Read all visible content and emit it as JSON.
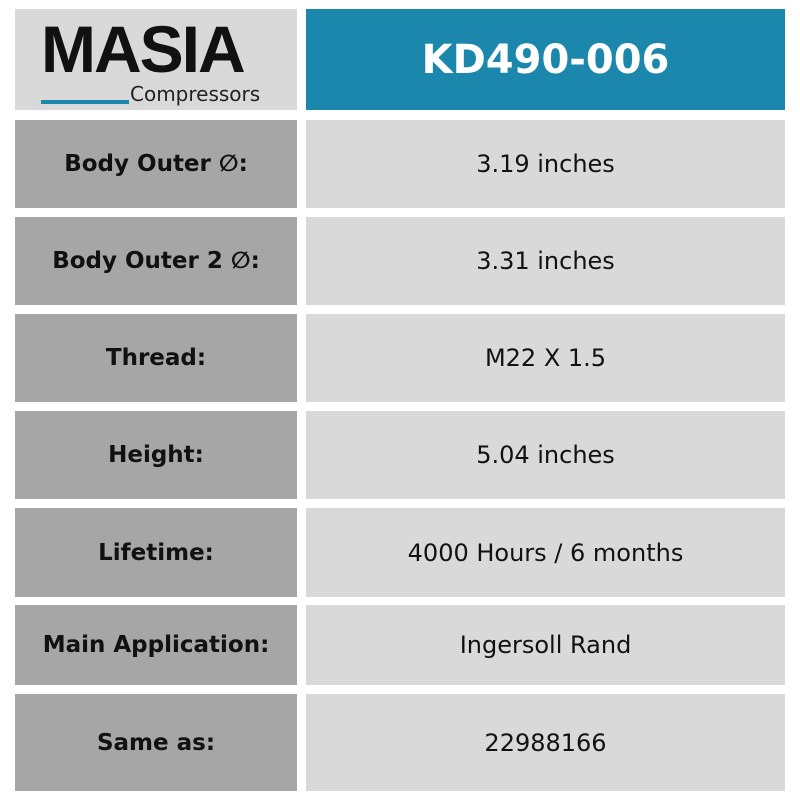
{
  "logo": {
    "brand": "MASIA",
    "sub": "Compressors",
    "accent": "#1b87ad"
  },
  "title": "KD490-006",
  "rows": [
    {
      "label": "Body Outer ∅:",
      "value": "3.19 inches"
    },
    {
      "label": "Body Outer 2 ∅:",
      "value": "3.31 inches"
    },
    {
      "label": "Thread:",
      "value": "M22 X 1.5"
    },
    {
      "label": "Height:",
      "value": "5.04 inches"
    },
    {
      "label": "Lifetime:",
      "value": "4000 Hours / 6 months"
    },
    {
      "label": "Main Application:",
      "value": "Ingersoll Rand"
    },
    {
      "label": "Same as:",
      "value": "22988166"
    }
  ]
}
